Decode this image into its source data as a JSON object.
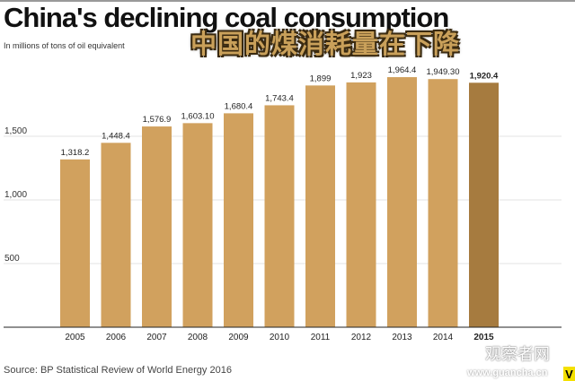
{
  "chart_data": {
    "type": "bar",
    "title": "China's declining coal consumption",
    "subtitle": "In millions of tons of oil equivalent",
    "overlay_title": "中国的煤消耗量在下降",
    "categories": [
      "2005",
      "2006",
      "2007",
      "2008",
      "2009",
      "2010",
      "2011",
      "2012",
      "2013",
      "2014",
      "2015"
    ],
    "values": [
      1318.2,
      1448.4,
      1576.9,
      1603.1,
      1680.4,
      1743.4,
      1899,
      1923,
      1964.4,
      1949.3,
      1920.4
    ],
    "value_labels": [
      "1,318.2",
      "1,448.4",
      "1,576.9",
      "1,603.10",
      "1,680.4",
      "1,743.4",
      "1,899",
      "1,923",
      "1,964.4",
      "1,949.30",
      "1,920.4"
    ],
    "highlight_index": 10,
    "yticks": [
      500,
      1000,
      1500
    ],
    "ytick_labels": [
      "500",
      "1,000",
      "1,500"
    ],
    "ylim": [
      0,
      2100
    ],
    "xlabel": "",
    "ylabel": "",
    "grid": true,
    "colors": {
      "bar": "#d1a15e",
      "highlight": "#a67b3f",
      "grid": "#e3e3e3"
    }
  },
  "source": "Source: BP Statistical Review of World Energy 2016",
  "watermark": {
    "name": "观察者网",
    "url": "www.guancha.cn",
    "logo": "V"
  }
}
